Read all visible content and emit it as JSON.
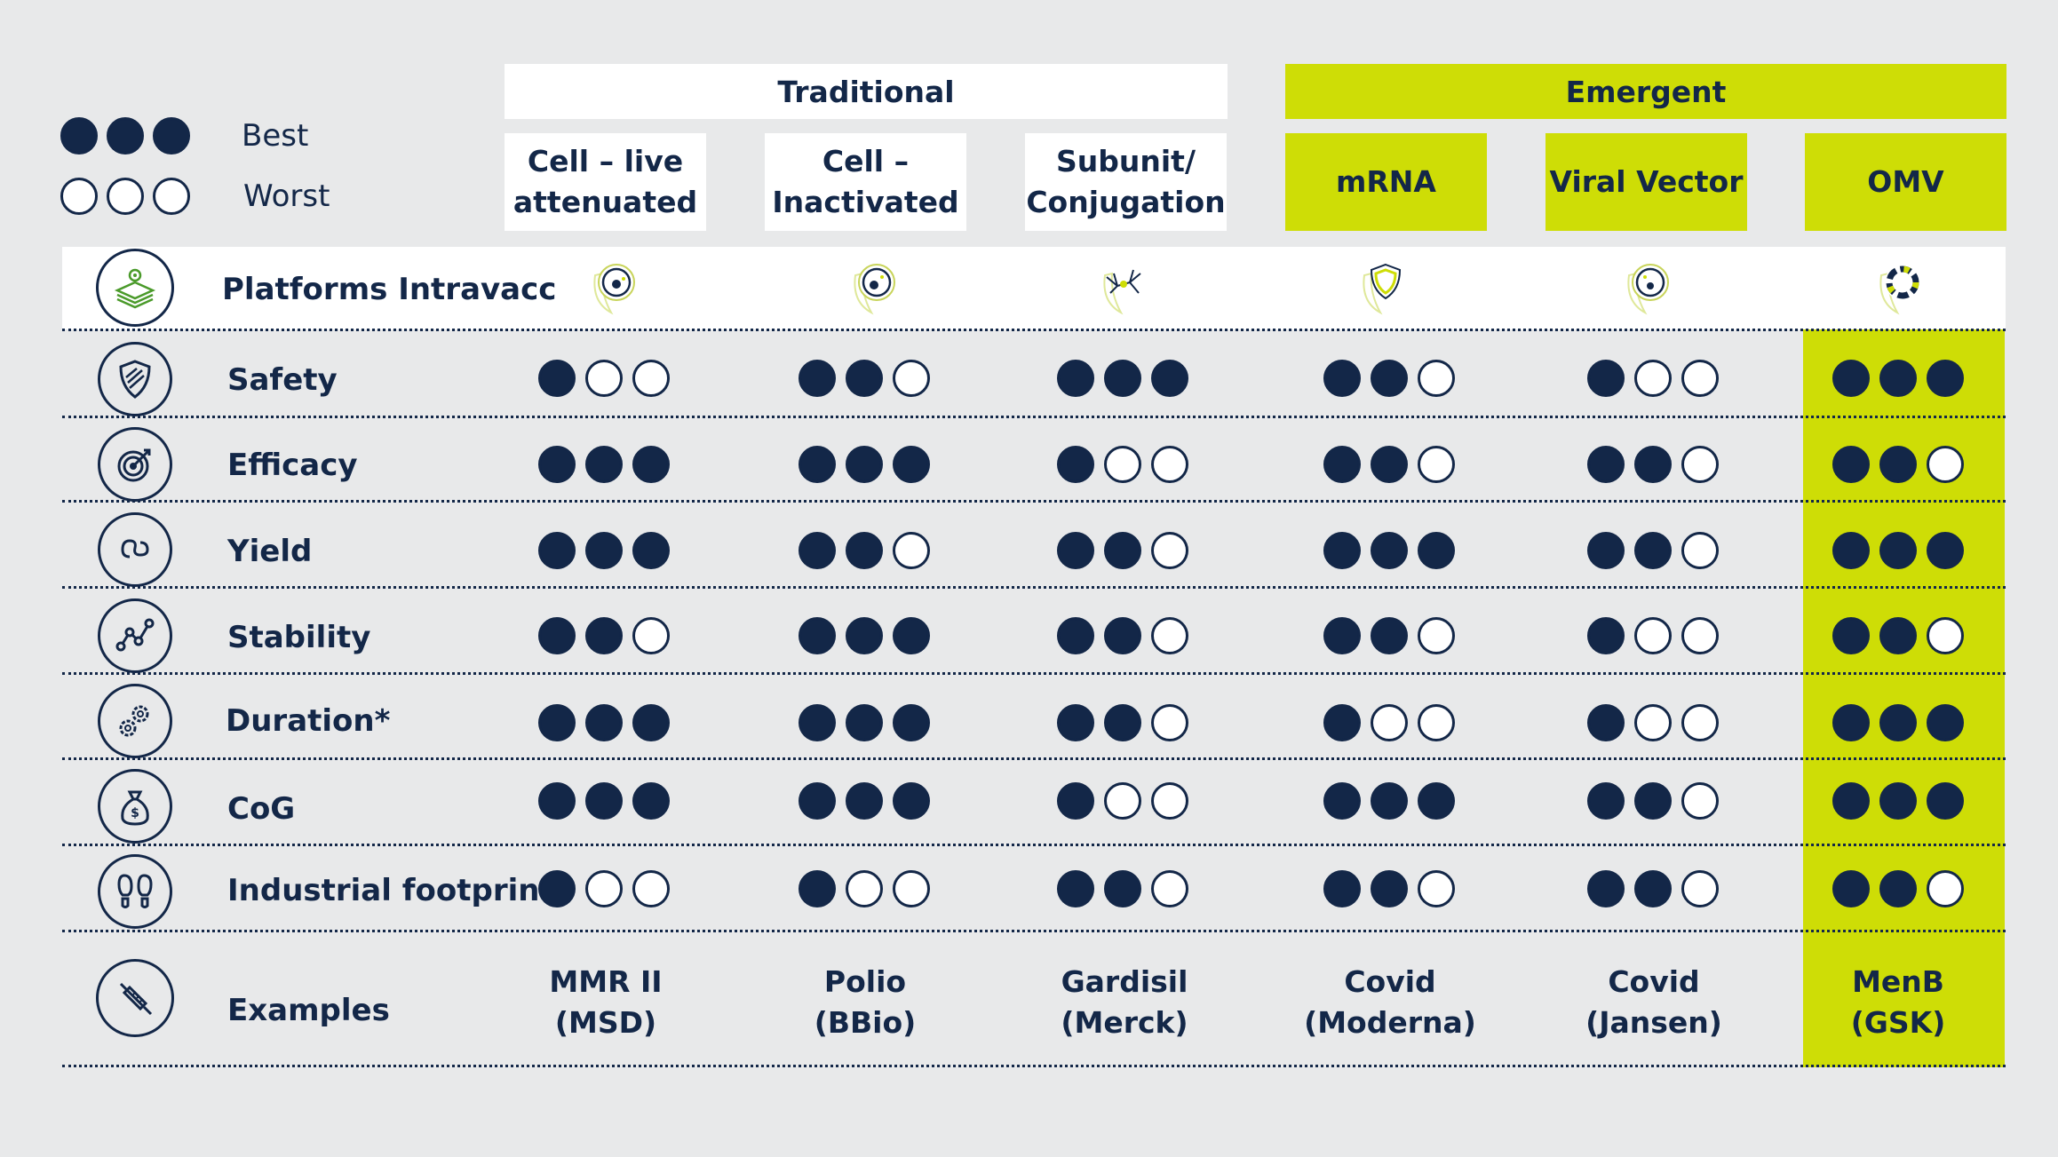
{
  "legend": {
    "best": {
      "label": "Best",
      "dots": 3
    },
    "worst": {
      "label": "Worst",
      "dots": 0
    }
  },
  "groups": {
    "traditional": "Traditional",
    "emergent": "Emergent"
  },
  "columns": [
    {
      "line1": "Cell – live",
      "line2": "attenuated",
      "group": "traditional"
    },
    {
      "line1": "Cell –",
      "line2": "Inactivated",
      "group": "traditional"
    },
    {
      "line1": "Subunit/",
      "line2": "Conjugation",
      "group": "traditional"
    },
    {
      "line1": "mRNA",
      "line2": "",
      "group": "emergent"
    },
    {
      "line1": "Viral Vector",
      "line2": "",
      "group": "emergent"
    },
    {
      "line1": "OMV",
      "line2": "",
      "group": "emergent"
    }
  ],
  "platforms_row": {
    "label": "Platforms Intravacc",
    "icon": "layers-gear-icon",
    "column_icons": [
      "cell-icon",
      "cell-icon",
      "protein-icon",
      "shield-icon",
      "virus-cell-icon",
      "omv-ring-icon"
    ]
  },
  "rows": [
    {
      "label": "Safety",
      "icon": "shield-icon",
      "ratings": [
        1,
        2,
        3,
        2,
        1,
        3
      ]
    },
    {
      "label": "Efficacy",
      "icon": "target-icon",
      "ratings": [
        3,
        3,
        1,
        2,
        2,
        2
      ]
    },
    {
      "label": "Yield",
      "icon": "cycle-icon",
      "ratings": [
        3,
        2,
        2,
        3,
        2,
        3
      ]
    },
    {
      "label": "Stability",
      "icon": "line-graph-icon",
      "ratings": [
        2,
        3,
        2,
        2,
        1,
        2
      ]
    },
    {
      "label": "Duration*",
      "icon": "gears-icon",
      "ratings": [
        3,
        3,
        2,
        1,
        1,
        3
      ]
    },
    {
      "label": "CoG",
      "icon": "money-bag-icon",
      "ratings": [
        3,
        3,
        1,
        3,
        2,
        3
      ]
    },
    {
      "label": "Industrial footprint",
      "icon": "footprints-icon",
      "ratings": [
        1,
        1,
        2,
        2,
        2,
        2
      ]
    }
  ],
  "examples_row": {
    "label": "Examples",
    "icon": "syringe-icon",
    "values": [
      {
        "line1": "MMR II",
        "line2": "(MSD)"
      },
      {
        "line1": "Polio",
        "line2": "(BBio)"
      },
      {
        "line1": "Gardisil",
        "line2": "(Merck)"
      },
      {
        "line1": "Covid",
        "line2": "(Moderna)"
      },
      {
        "line1": "Covid",
        "line2": "(Jansen)"
      },
      {
        "line1": "MenB",
        "line2": "(GSK)"
      }
    ]
  },
  "colors": {
    "navy": "#132748",
    "lime": "#cedd06",
    "background": "#e8e9ea",
    "white": "#ffffff"
  }
}
